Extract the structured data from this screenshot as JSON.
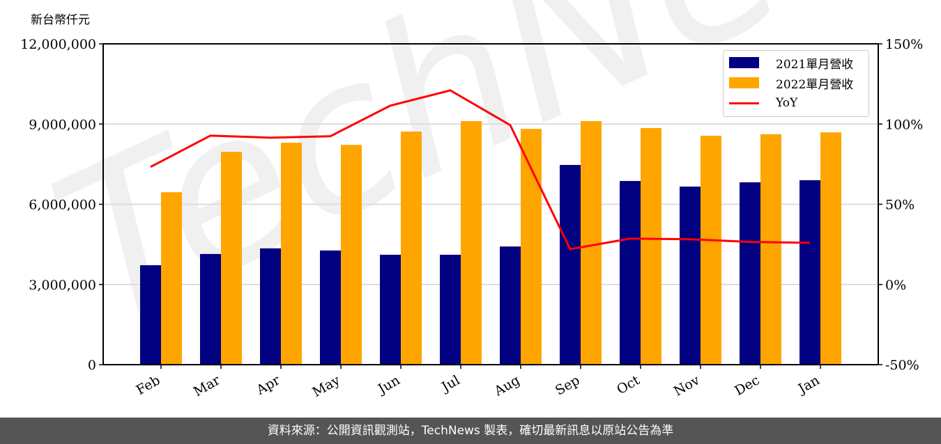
{
  "unit_label": "新台幣仟元",
  "footer": "資料來源：公開資訊觀測站，TechNews 製表，確切最新訊息以原站公告為準",
  "watermark": "TechNews",
  "colors": {
    "series_2021": "#000080",
    "series_2022": "#FFA500",
    "yoy": "#FF0000",
    "footer_bg": "#555555",
    "grid": "#d3d3d3"
  },
  "legend": [
    {
      "label": "2021單月營收",
      "type": "bar",
      "color": "#000080"
    },
    {
      "label": "2022單月營收",
      "type": "bar",
      "color": "#FFA500"
    },
    {
      "label": "YoY",
      "type": "line",
      "color": "#FF0000"
    }
  ],
  "chart_data": {
    "type": "bar",
    "title": "",
    "xlabel": "",
    "ylabel": "新台幣仟元",
    "y2label": "YoY",
    "categories": [
      "Feb",
      "Mar",
      "Apr",
      "May",
      "Jun",
      "Jul",
      "Aug",
      "Sep",
      "Oct",
      "Nov",
      "Dec",
      "Jan"
    ],
    "series": [
      {
        "name": "2021單月營收",
        "type": "bar",
        "axis": "left",
        "values": [
          3720000,
          4140000,
          4350000,
          4270000,
          4110000,
          4110000,
          4420000,
          7470000,
          6870000,
          6660000,
          6820000,
          6900000
        ]
      },
      {
        "name": "2022單月營收",
        "type": "bar",
        "axis": "left",
        "values": [
          6450000,
          7960000,
          8300000,
          8220000,
          8720000,
          9110000,
          8820000,
          9110000,
          8850000,
          8560000,
          8620000,
          8690000
        ]
      },
      {
        "name": "YoY",
        "type": "line",
        "axis": "right",
        "values": [
          73.3,
          92.8,
          91.5,
          92.4,
          111.5,
          121.0,
          99.3,
          22.0,
          28.6,
          28.2,
          26.5,
          26.0
        ]
      }
    ],
    "ylim": [
      0,
      12000000
    ],
    "y2lim": [
      -50,
      150
    ],
    "yticks": [
      "0",
      "3,000,000",
      "6,000,000",
      "9,000,000",
      "12,000,000"
    ],
    "y2ticks": [
      "-50%",
      "0%",
      "50%",
      "100%",
      "150%"
    ],
    "grid": true,
    "legend_position": "upper right"
  }
}
